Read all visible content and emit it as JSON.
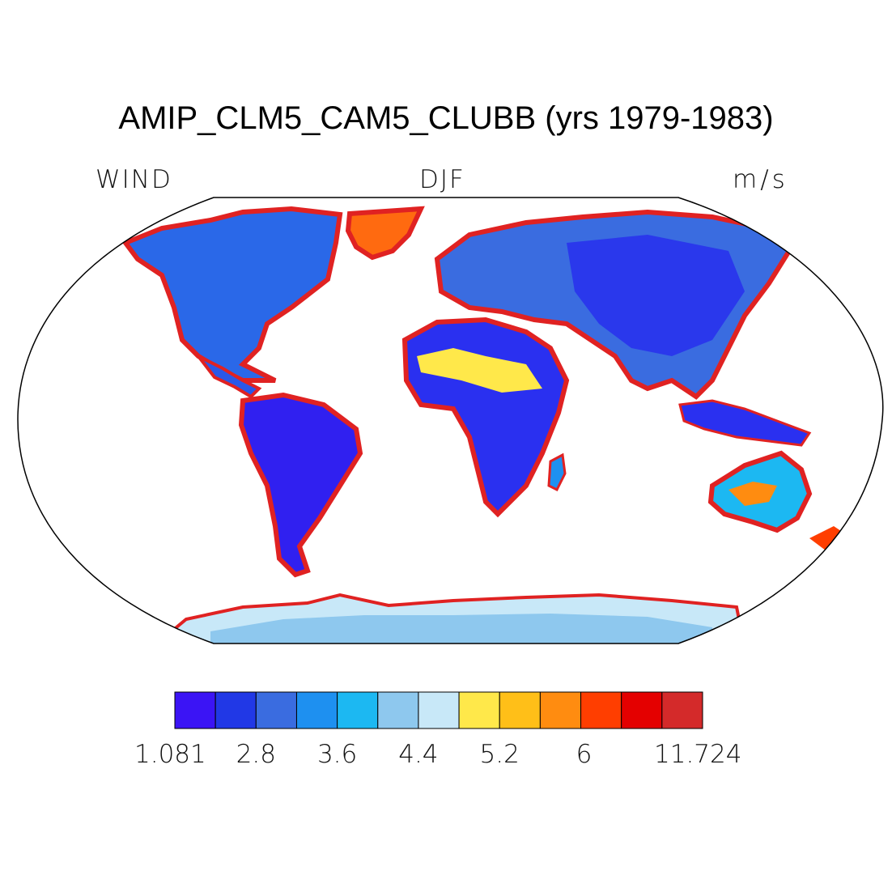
{
  "title": "AMIP_CLM5_CAM5_CLUBB (yrs 1979-1983)",
  "left_label": "WIND",
  "center_label": "DJF",
  "right_label": "m/s",
  "colorbar": {
    "colors": [
      "#3b14f5",
      "#2138e6",
      "#3a6ce0",
      "#1e90f0",
      "#1cb8f2",
      "#8ec8ee",
      "#c8e8f8",
      "#ffe84a",
      "#ffbf18",
      "#ff8c10",
      "#ff3e00",
      "#e40000",
      "#d42a2a"
    ],
    "labels": [
      "1.081",
      "2.8",
      "3.6",
      "4.4",
      "5.2",
      "6",
      "11.724"
    ],
    "label_boundaries": [
      0,
      2,
      4,
      6,
      8,
      10,
      13
    ]
  },
  "land_color": "#2a4fe8",
  "coast_color": "#e02222"
}
